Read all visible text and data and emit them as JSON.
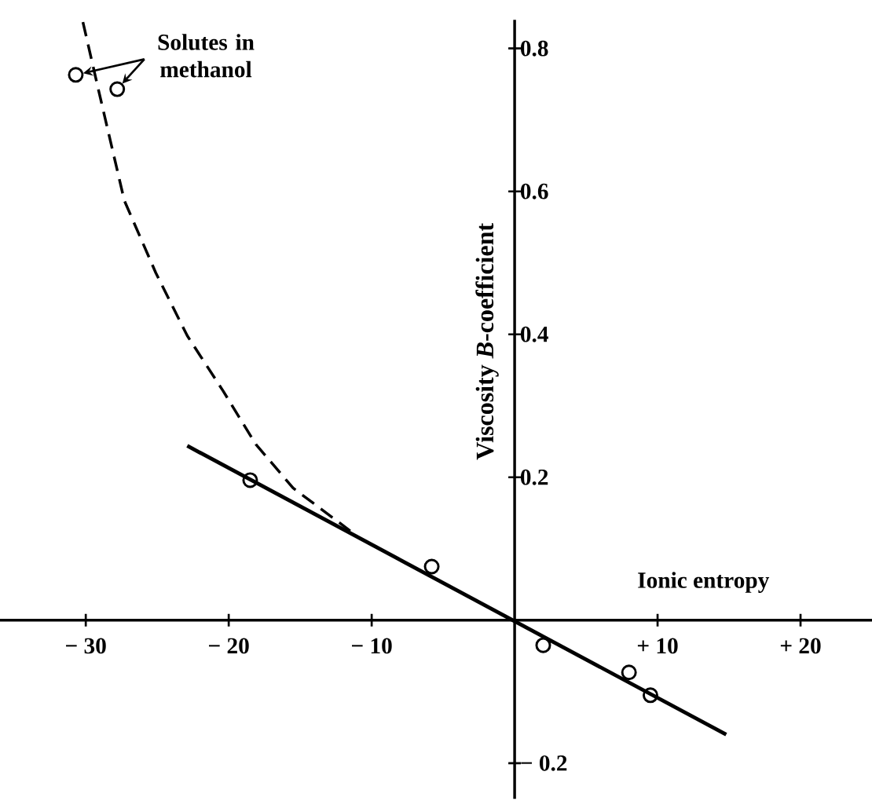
{
  "chart_data": {
    "type": "scatter",
    "xlabel": "Ionic entropy",
    "ylabel": "Viscosity *B*-coefficient",
    "annotations": [
      {
        "text": "Solutes in methanol",
        "x": -30.7,
        "y": 0.763
      }
    ],
    "xlim": [
      -36,
      25
    ],
    "ylim": [
      -0.25,
      0.84
    ],
    "xticks": [
      {
        "value": -30,
        "label": "− 30"
      },
      {
        "value": -20,
        "label": "− 20"
      },
      {
        "value": -10,
        "label": "− 10"
      },
      {
        "value": 10,
        "label": "+ 10"
      },
      {
        "value": 20,
        "label": "+ 20"
      }
    ],
    "yticks": [
      {
        "value": -0.2,
        "label": "− 0.2"
      },
      0.2,
      0.4,
      0.6,
      0.8
    ],
    "series": [
      {
        "type": "scatter",
        "marker": "circle",
        "color": "#000000",
        "x": [
          -30.7,
          -27.8,
          -18.5,
          -5.8,
          2.0,
          8.0,
          9.5
        ],
        "values": [
          0.763,
          0.743,
          0.196,
          0.075,
          -0.035,
          -0.073,
          -0.105
        ]
      },
      {
        "type": "line",
        "marker": "none",
        "line_style": "solid",
        "color": "#000000",
        "x": [
          -22.9,
          14.8
        ],
        "values": [
          0.244,
          -0.16
        ]
      },
      {
        "type": "line",
        "marker": "none",
        "line_style": "dashed",
        "color": "#000000",
        "x": [
          -30.2,
          -29.1,
          -27.3,
          -25.1,
          -22.9,
          -20.4,
          -18.1,
          -15.5,
          -11.5
        ],
        "values": [
          0.837,
          0.741,
          0.587,
          0.486,
          0.398,
          0.321,
          0.246,
          0.185,
          0.125
        ]
      }
    ]
  }
}
